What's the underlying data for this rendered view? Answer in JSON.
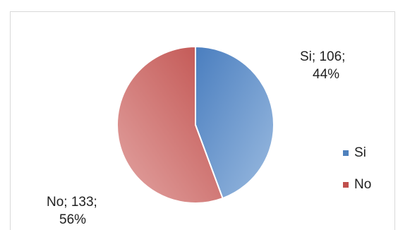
{
  "chart_data": {
    "type": "pie",
    "title": "",
    "slices": [
      {
        "label": "Si",
        "value": 106,
        "percent": "44%",
        "color": "#4f81bd"
      },
      {
        "label": "No",
        "value": 133,
        "percent": "56%",
        "color": "#c0504d"
      }
    ],
    "data_labels": [
      {
        "line1": "Si; 106;",
        "line2": "44%"
      },
      {
        "line1": "No; 133;",
        "line2": "56%"
      }
    ],
    "legend": {
      "position": "right",
      "items": [
        {
          "label": "Si",
          "color": "#4f81bd"
        },
        {
          "label": "No",
          "color": "#c0504d"
        }
      ]
    }
  }
}
